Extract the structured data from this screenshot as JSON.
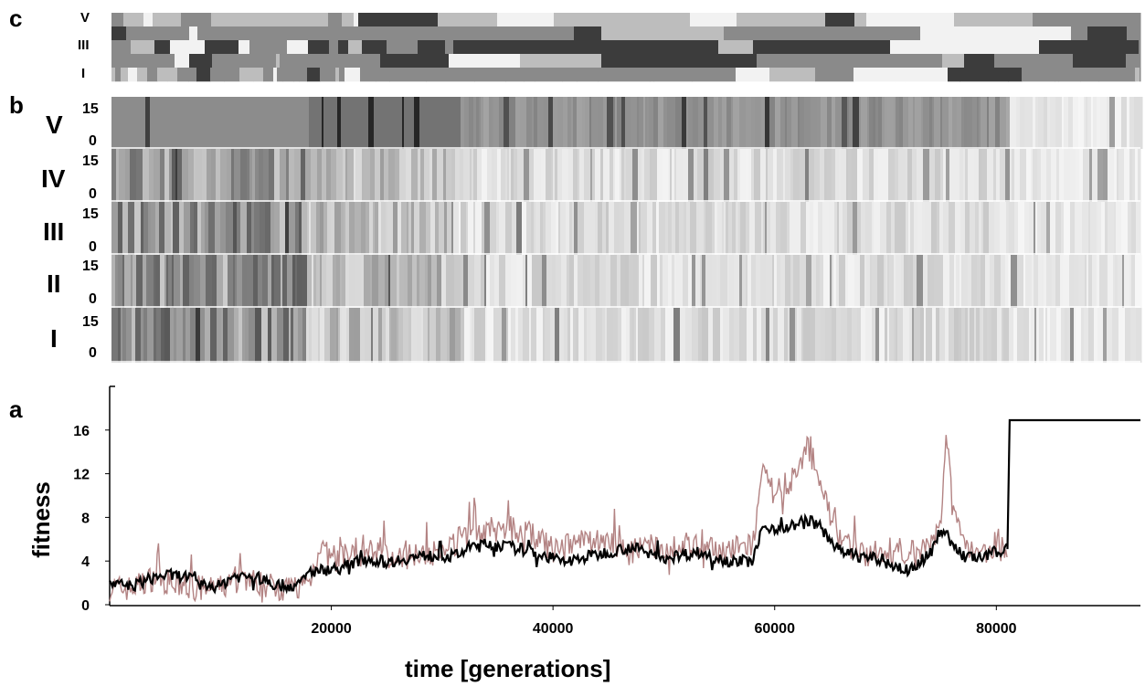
{
  "panels": {
    "c": {
      "letter": "c",
      "row_labels": [
        "V",
        "III",
        "I"
      ],
      "shade_levels": [
        "#f2f2f2",
        "#bdbdbd",
        "#8a8a8a",
        "#3c3c3c"
      ]
    },
    "b": {
      "letter": "b",
      "rows": [
        {
          "label": "V",
          "tick_top": "15",
          "tick_bottom": "0"
        },
        {
          "label": "IV",
          "tick_top": "15",
          "tick_bottom": "0"
        },
        {
          "label": "III",
          "tick_top": "15",
          "tick_bottom": "0"
        },
        {
          "label": "II",
          "tick_top": "15",
          "tick_bottom": "0"
        },
        {
          "label": "I",
          "tick_top": "15",
          "tick_bottom": "0"
        }
      ]
    },
    "a": {
      "letter": "a"
    }
  },
  "chart_data": {
    "type": "line",
    "xlabel": "time [generations]",
    "ylabel": "fitness",
    "xlim": [
      0,
      93000
    ],
    "ylim": [
      0,
      20
    ],
    "xticks": [
      "20000",
      "40000",
      "60000",
      "80000"
    ],
    "xtick_values": [
      20000,
      40000,
      60000,
      80000
    ],
    "yticks": [
      "0",
      "4",
      "8",
      "12",
      "16"
    ],
    "ytick_values": [
      0,
      4,
      8,
      12,
      16
    ],
    "colors": {
      "max_fitness": "#b38383",
      "mean_fitness": "#000000"
    },
    "series": [
      {
        "role": "max_fitness",
        "x": [
          0,
          2000,
          4000,
          6000,
          8000,
          10000,
          12000,
          14000,
          16000,
          18000,
          19000,
          20000,
          22000,
          24000,
          26000,
          28000,
          30000,
          32000,
          34000,
          36000,
          38000,
          40000,
          42000,
          44000,
          46000,
          48000,
          50000,
          52000,
          54000,
          56000,
          58000,
          59000,
          60000,
          61000,
          62000,
          63000,
          64000,
          65000,
          66000,
          68000,
          70000,
          72000,
          74000,
          75000,
          75500,
          76000,
          77000,
          78000,
          80000,
          81000
        ],
        "y": [
          1.5,
          1.5,
          2.5,
          1.8,
          1.5,
          1.5,
          2.5,
          1.8,
          1.5,
          2,
          5.5,
          4,
          4.5,
          5,
          4,
          5,
          4.5,
          6.5,
          6.5,
          7,
          6.5,
          5,
          5.5,
          6,
          5.5,
          5,
          5,
          5.5,
          5,
          5,
          5.5,
          12,
          10,
          11,
          12,
          14.5,
          12,
          8,
          6,
          4.5,
          5,
          5,
          5,
          8,
          16.5,
          9,
          6,
          5,
          5,
          5
        ]
      },
      {
        "role": "mean_fitness",
        "x": [
          0,
          1000,
          2000,
          4000,
          5000,
          7000,
          8000,
          10000,
          11000,
          13000,
          15000,
          17000,
          18000,
          21000,
          23000,
          25000,
          27000,
          29000,
          31000,
          33000,
          35000,
          38000,
          41000,
          44000,
          47000,
          50000,
          53000,
          56000,
          58000,
          59000,
          61000,
          63000,
          64000,
          66000,
          69000,
          72000,
          74000,
          75000,
          77000,
          79000,
          80000,
          81000,
          81200,
          93000
        ],
        "y": [
          1.8,
          1.8,
          1.7,
          2.5,
          2.7,
          2.6,
          1.8,
          1.7,
          2.6,
          2.6,
          1.8,
          1.7,
          3.0,
          3.4,
          4.2,
          3.9,
          4.3,
          4.5,
          4.4,
          5.5,
          5.5,
          4.9,
          3.9,
          4.6,
          5.3,
          4.3,
          4.8,
          4.0,
          4.0,
          7.1,
          7.0,
          7.8,
          7.2,
          4.8,
          4.2,
          3.1,
          4.6,
          7.0,
          4.4,
          4.3,
          4.9,
          5.1,
          16.9,
          16.9
        ]
      }
    ]
  }
}
